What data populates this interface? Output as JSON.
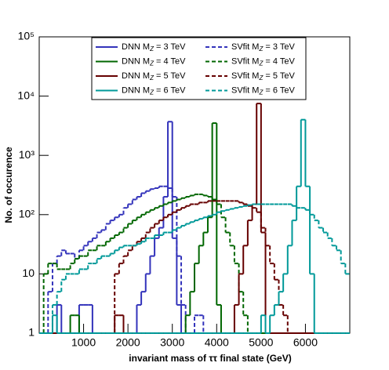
{
  "chart_data": {
    "type": "histogram",
    "xlabel": "invariant mass of ττ final state (GeV)",
    "ylabel": "No. of occurence",
    "bins": [
      0,
      100,
      200,
      300,
      400,
      500,
      600,
      700,
      800,
      900,
      1000,
      1100,
      1200,
      1300,
      1400,
      1500,
      1600,
      1700,
      1800,
      1900,
      2000,
      2100,
      2200,
      2300,
      2400,
      2500,
      2600,
      2700,
      2800,
      2900,
      3000,
      3100,
      3200,
      3300,
      3400,
      3500,
      3600,
      3700,
      3800,
      3900,
      4000,
      4100,
      4200,
      4300,
      4400,
      4500,
      4600,
      4700,
      4800,
      4900,
      5000,
      5100,
      5200,
      5300,
      5400,
      5500,
      5600,
      5700,
      5800,
      5900,
      6000,
      6100,
      6200,
      6300,
      6400,
      6500,
      6600,
      6700,
      6800,
      6900,
      7000
    ],
    "xlim": [
      0,
      7000
    ],
    "xticks": [
      1000,
      2000,
      3000,
      4000,
      5000,
      6000
    ],
    "ylim": [
      1,
      100000
    ],
    "log_y": true,
    "yticks": [
      1,
      10,
      {
        "value": 100,
        "label": "10²"
      },
      {
        "value": 1000,
        "label": "10³"
      },
      {
        "value": 10000,
        "label": "10⁴"
      },
      {
        "value": 100000,
        "label": "10⁵"
      }
    ],
    "legend": "top-center",
    "series": [
      {
        "name": "DNN MZ = 3 TeV",
        "color": "#3333bb",
        "dashed": false,
        "values": [
          0,
          0,
          0,
          0,
          3,
          0,
          0,
          0,
          0,
          3,
          3,
          3,
          0,
          0,
          0,
          0,
          0,
          0,
          0,
          0,
          0,
          0,
          3,
          5,
          10,
          20,
          40,
          60,
          200,
          3700,
          40,
          3,
          0,
          0,
          0,
          0,
          0,
          0,
          0,
          0,
          0,
          0,
          0,
          0,
          0,
          0,
          0,
          0,
          0,
          0,
          0,
          0,
          0,
          0,
          0,
          0,
          0,
          0,
          0,
          0,
          0,
          0,
          0,
          0,
          0,
          0,
          0,
          0,
          0,
          0
        ]
      },
      {
        "name": "SVfit MZ = 3 TeV",
        "color": "#3333bb",
        "dashed": true,
        "values": [
          0,
          0,
          5,
          15,
          20,
          25,
          22,
          22,
          18,
          25,
          30,
          35,
          40,
          50,
          55,
          70,
          80,
          90,
          100,
          130,
          150,
          180,
          200,
          230,
          250,
          270,
          280,
          300,
          300,
          280,
          200,
          20,
          3,
          0,
          0,
          2,
          2,
          0,
          0,
          0,
          0,
          0,
          0,
          0,
          0,
          0,
          0,
          0,
          0,
          0,
          0,
          0,
          0,
          0,
          0,
          0,
          0,
          0,
          0,
          0,
          0,
          0,
          0,
          0,
          0,
          0,
          0,
          0,
          0,
          0
        ]
      },
      {
        "name": "DNN MZ = 4 TeV",
        "color": "#006600",
        "dashed": false,
        "values": [
          0,
          0,
          0,
          0,
          0,
          0,
          0,
          2,
          2,
          0,
          0,
          0,
          0,
          0,
          0,
          0,
          0,
          0,
          0,
          0,
          0,
          0,
          0,
          0,
          0,
          0,
          0,
          0,
          0,
          0,
          0,
          0,
          0,
          2,
          5,
          15,
          30,
          50,
          90,
          3500,
          3,
          0,
          0,
          0,
          0,
          0,
          0,
          0,
          0,
          0,
          0,
          0,
          0,
          0,
          0,
          0,
          0,
          0,
          0,
          0,
          0,
          0,
          0,
          0,
          0,
          0,
          0,
          0,
          0,
          0
        ]
      },
      {
        "name": "SVfit MZ = 4 TeV",
        "color": "#006600",
        "dashed": true,
        "values": [
          0,
          10,
          15,
          15,
          12,
          12,
          12,
          15,
          18,
          20,
          20,
          25,
          25,
          30,
          30,
          35,
          40,
          45,
          50,
          60,
          70,
          80,
          90,
          100,
          110,
          120,
          130,
          140,
          150,
          160,
          170,
          180,
          190,
          200,
          210,
          220,
          220,
          210,
          200,
          180,
          150,
          90,
          50,
          30,
          15,
          5,
          2,
          0,
          0,
          0,
          0,
          0,
          0,
          0,
          0,
          0,
          0,
          0,
          0,
          0,
          0,
          0,
          0,
          0,
          0,
          0,
          0,
          0,
          0,
          0
        ]
      },
      {
        "name": "DNN MZ = 5 TeV",
        "color": "#660000",
        "dashed": false,
        "values": [
          0,
          0,
          0,
          0,
          0,
          0,
          0,
          0,
          0,
          0,
          0,
          0,
          0,
          0,
          0,
          0,
          0,
          2,
          2,
          0,
          0,
          0,
          0,
          0,
          0,
          0,
          0,
          0,
          0,
          0,
          0,
          0,
          0,
          0,
          0,
          0,
          0,
          0,
          0,
          0,
          0,
          0,
          0,
          0,
          3,
          10,
          30,
          80,
          150,
          7500,
          50,
          0,
          0,
          0,
          0,
          0,
          0,
          0,
          0,
          0,
          0,
          0,
          0,
          0,
          0,
          0,
          0,
          0,
          0,
          0
        ]
      },
      {
        "name": "SVfit MZ = 5 TeV",
        "color": "#660000",
        "dashed": true,
        "values": [
          0,
          0,
          0,
          0,
          0,
          0,
          0,
          0,
          0,
          0,
          0,
          0,
          0,
          0,
          0,
          0,
          0,
          10,
          15,
          20,
          25,
          30,
          35,
          40,
          50,
          60,
          70,
          80,
          90,
          100,
          110,
          120,
          130,
          140,
          150,
          150,
          160,
          160,
          170,
          170,
          170,
          170,
          170,
          170,
          170,
          160,
          150,
          140,
          130,
          110,
          60,
          30,
          15,
          8,
          3,
          2,
          0,
          0,
          0,
          0,
          0,
          0,
          0,
          0,
          0,
          0,
          0,
          0,
          0,
          0
        ]
      },
      {
        "name": "DNN MZ = 6 TeV",
        "color": "#009999",
        "dashed": false,
        "values": [
          0,
          0,
          0,
          2,
          0,
          0,
          0,
          0,
          0,
          0,
          0,
          0,
          0,
          0,
          0,
          0,
          0,
          0,
          0,
          0,
          0,
          0,
          0,
          0,
          0,
          0,
          0,
          0,
          0,
          0,
          0,
          0,
          0,
          0,
          0,
          0,
          0,
          0,
          0,
          0,
          0,
          0,
          0,
          0,
          0,
          0,
          0,
          0,
          0,
          0,
          2,
          0,
          2,
          3,
          5,
          10,
          30,
          80,
          300,
          4000,
          300,
          10,
          0,
          0,
          0,
          0,
          0,
          0,
          0,
          0
        ]
      },
      {
        "name": "SVfit MZ = 6 TeV",
        "color": "#009999",
        "dashed": true,
        "values": [
          0,
          0,
          0,
          3,
          5,
          8,
          10,
          10,
          10,
          12,
          12,
          15,
          15,
          18,
          20,
          20,
          22,
          25,
          28,
          30,
          30,
          30,
          32,
          35,
          40,
          40,
          45,
          45,
          50,
          50,
          55,
          60,
          65,
          70,
          75,
          80,
          85,
          90,
          95,
          100,
          110,
          115,
          120,
          125,
          130,
          135,
          140,
          145,
          150,
          150,
          150,
          150,
          150,
          150,
          150,
          150,
          150,
          140,
          130,
          130,
          120,
          100,
          80,
          60,
          50,
          40,
          30,
          25,
          15,
          10
        ]
      }
    ]
  }
}
